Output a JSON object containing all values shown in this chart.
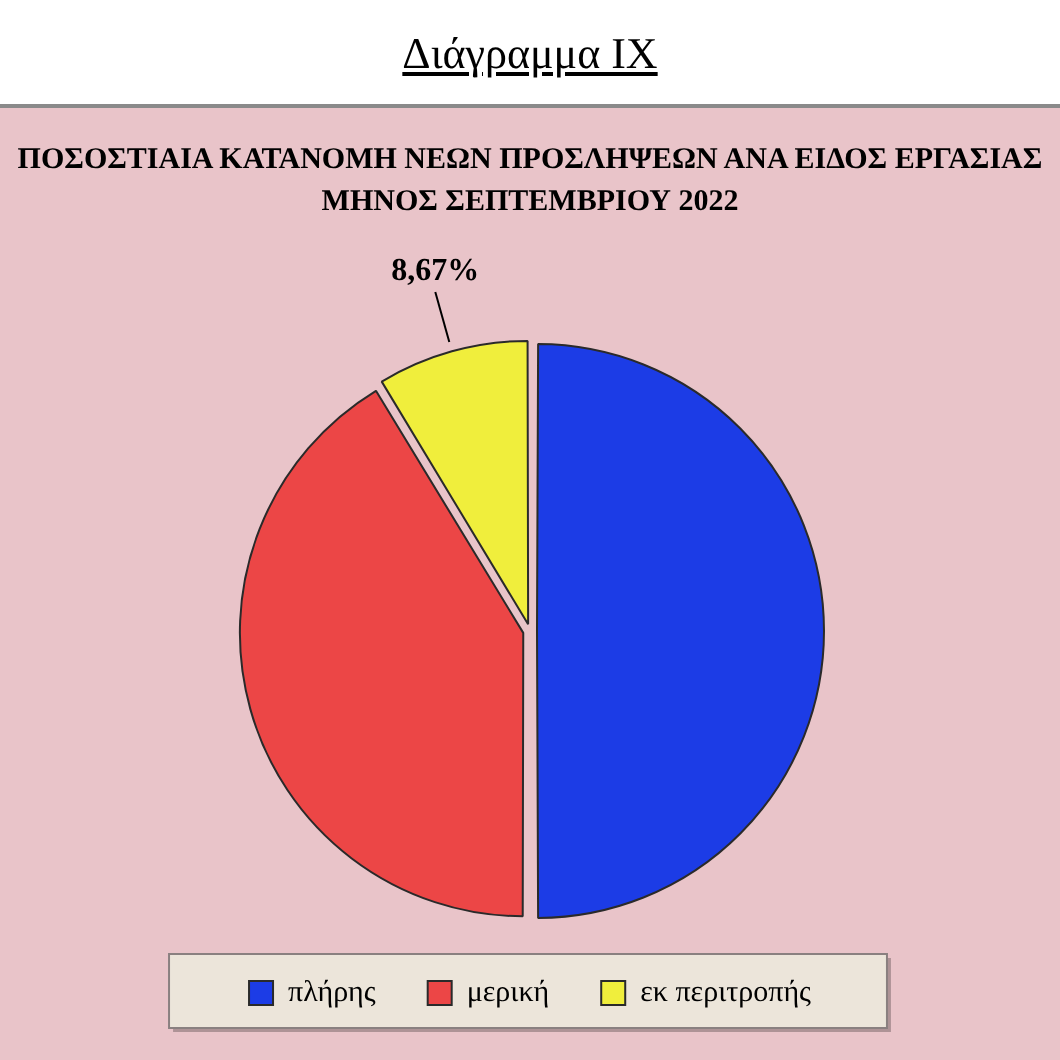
{
  "chart_data": {
    "type": "pie",
    "title": "Διάγραμμα IX",
    "subtitle": "ΠΟΣΟΣΤΙΑΙΑ ΚΑΤΑΝΟΜΗ ΝΕΩΝ ΠΡΟΣΛΗΨΕΩΝ ΑΝΑ ΕΙΔΟΣ ΕΡΓΑΣΙΑΣ ΜΗΝΟΣ ΣΕΠΤΕΜΒΡΙΟΥ 2022",
    "categories": [
      "πλήρης",
      "μερική",
      "εκ περιτροπής"
    ],
    "values": [
      50,
      41.33,
      8.67
    ],
    "colors": [
      "#1c3ce6",
      "#ec4646",
      "#f0ee3c"
    ],
    "value_labels": [
      null,
      null,
      "8,67%"
    ],
    "legend": "bottom"
  }
}
